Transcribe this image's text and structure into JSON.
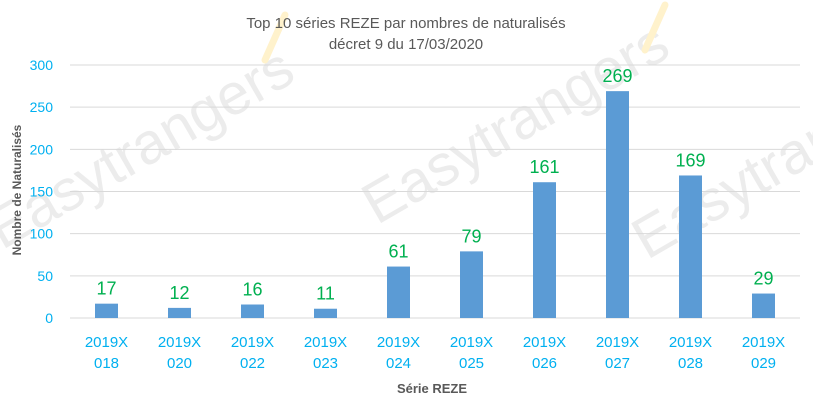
{
  "chart_data": {
    "type": "bar",
    "title_lines": [
      "Top 10 séries REZE par nombres de naturalisés",
      "décret 9 du 17/03/2020"
    ],
    "xlabel": "Série REZE",
    "ylabel": "Nombre de Naturalisés",
    "categories": [
      [
        "2019X",
        "018"
      ],
      [
        "2019X",
        "020"
      ],
      [
        "2019X",
        "022"
      ],
      [
        "2019X",
        "023"
      ],
      [
        "2019X",
        "024"
      ],
      [
        "2019X",
        "025"
      ],
      [
        "2019X",
        "026"
      ],
      [
        "2019X",
        "027"
      ],
      [
        "2019X",
        "028"
      ],
      [
        "2019X",
        "029"
      ]
    ],
    "values": [
      17,
      12,
      16,
      11,
      61,
      79,
      161,
      269,
      169,
      29
    ],
    "ylim": [
      0,
      300
    ],
    "yticks": [
      "0",
      "50",
      "100",
      "150",
      "200",
      "250",
      "300"
    ],
    "grid": true,
    "legend": "none",
    "colors": {
      "bar": "#5b9bd5",
      "data_label": "#00b050",
      "tick_label": "#00b0f0",
      "title": "#595959",
      "axis_title": "#595959",
      "grid": "#d9d9d9",
      "watermark": "#bfbfbf",
      "watermark_slash": "#fff2cc"
    }
  },
  "watermark": {
    "text": "Easytrangers"
  }
}
